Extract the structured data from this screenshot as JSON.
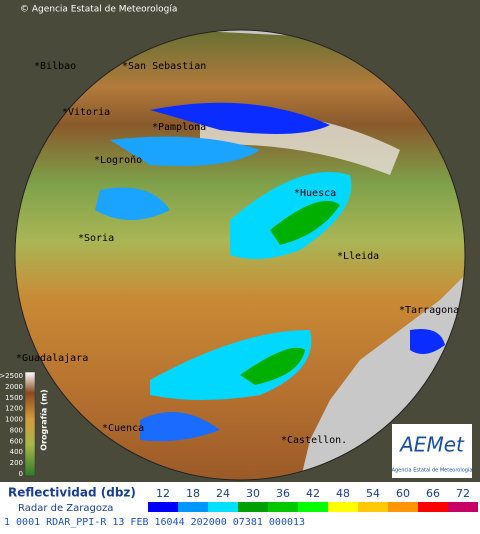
{
  "header": {
    "copyright": "© Agencia Estatal de Meteorología"
  },
  "cities": [
    "Bilbao",
    "San Sebastian",
    "Vitoria",
    "Pamplona",
    "Logroño",
    "Huesca",
    "Soria",
    "Lleida",
    "Tarragona",
    "Guadalajara",
    "Cuenca",
    "Castellon."
  ],
  "orography": {
    "title": "Orografía (m)",
    "ticks": [
      {
        "value": 2500,
        "label": ">2500"
      },
      2000,
      1500,
      1200,
      1000,
      800,
      600,
      400,
      200,
      0
    ]
  },
  "logo": {
    "brand": "AEMet",
    "caption": "Agencia Estatal de Meteorología"
  },
  "legend": {
    "title": "Reflectividad (dbz)",
    "subtitle": "Radar de Zaragoza",
    "values": [
      12,
      18,
      24,
      30,
      36,
      42,
      48,
      54,
      60,
      66,
      72
    ],
    "colors": [
      "#0000ff",
      "#0096ff",
      "#00e0ff",
      "#00a000",
      "#00c800",
      "#00ff00",
      "#ffff00",
      "#ffc800",
      "#ff9600",
      "#ff0000",
      "#c80064"
    ]
  },
  "status": "1 0001 RDAR_PPI-R  13 FEB 16044 202000 07381 000013"
}
